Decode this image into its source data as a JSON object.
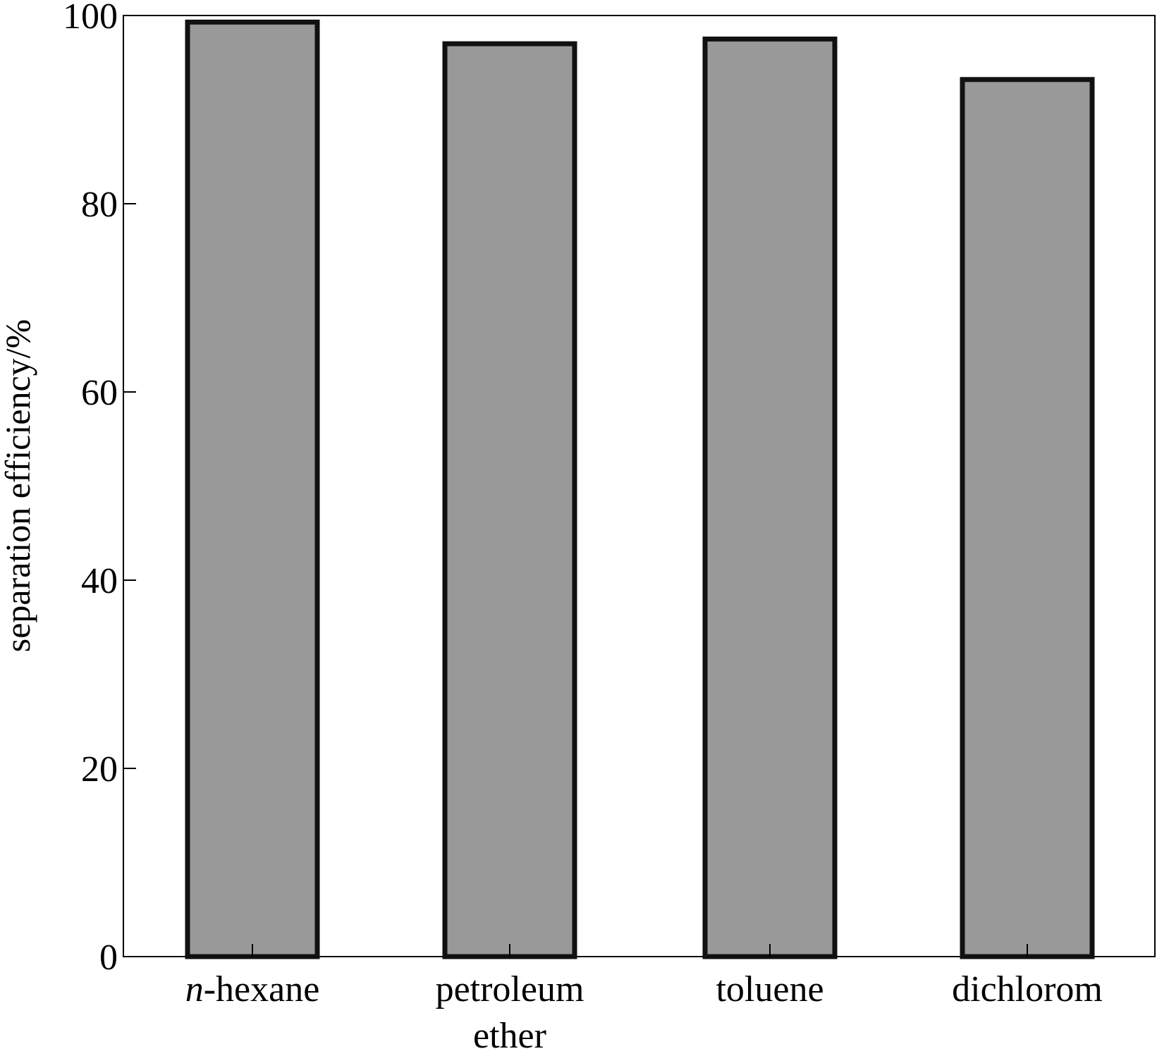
{
  "chart_data": {
    "type": "bar",
    "categories": [
      {
        "prefix": "n",
        "rest": "-hexane"
      },
      {
        "lines": [
          "petroleum",
          "ether"
        ]
      },
      {
        "lines": [
          "toluene"
        ]
      },
      {
        "lines": [
          "dichlorom"
        ]
      }
    ],
    "category_names": [
      "n-hexane",
      "petroleum ether",
      "toluene",
      "dichlorom"
    ],
    "values": [
      99.3,
      97.0,
      97.5,
      93.2
    ],
    "title": "",
    "xlabel": "",
    "ylabel": "separation efficiency/%",
    "ylim": [
      0,
      100
    ],
    "yticks": [
      0,
      20,
      40,
      60,
      80,
      100
    ],
    "grid": false,
    "bar_color": "#999999",
    "bar_edge_color": "#111111"
  }
}
